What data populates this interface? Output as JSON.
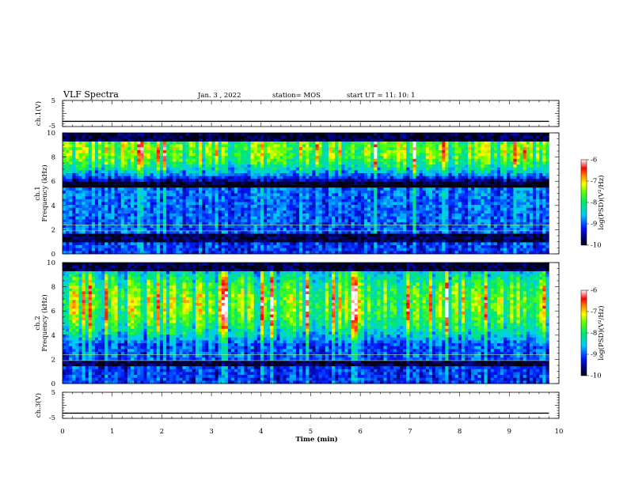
{
  "header": {
    "title": "VLF Spectra",
    "date": "Jan. 3 , 2022",
    "station": "station= MOS",
    "start": "start UT = 11: 10: 1"
  },
  "chart_data": [
    {
      "type": "line",
      "id": "ch1-waveform",
      "ylabel": "ch.1(V)",
      "ylim": [
        -5,
        5
      ],
      "yticks": [
        5,
        -5
      ],
      "xlim": [
        0,
        10
      ],
      "series": [
        {
          "x": [
            0,
            9.8
          ],
          "y": [
            -3,
            -3
          ]
        }
      ]
    },
    {
      "type": "heatmap",
      "id": "ch1-spectrogram",
      "ylabel": "ch.1\nFrequency (kHz)",
      "ylim": [
        0,
        10
      ],
      "yticks": [
        0,
        2,
        4,
        6,
        8,
        10
      ],
      "xlim": [
        0,
        10
      ],
      "data_extent_min": 9.8,
      "colorbar": {
        "label": "log(PSD)(V²/Hz)",
        "range": [
          -10,
          -6
        ],
        "ticks": [
          -6,
          -7,
          -8,
          -9,
          -10
        ]
      }
    },
    {
      "type": "heatmap",
      "id": "ch2-spectrogram",
      "ylabel": "ch.2\nFrequency (kHz)",
      "ylim": [
        0,
        10
      ],
      "yticks": [
        0,
        2,
        4,
        6,
        8,
        10
      ],
      "xlim": [
        0,
        10
      ],
      "data_extent_min": 9.8,
      "colorbar": {
        "label": "log(PSD)(V²/Hz)",
        "range": [
          -10,
          -6
        ],
        "ticks": [
          -6,
          -7,
          -8,
          -9,
          -10
        ]
      }
    },
    {
      "type": "line",
      "id": "ch3-waveform",
      "ylabel": "ch.3(V)",
      "ylim": [
        -5,
        5
      ],
      "yticks": [
        5,
        -5
      ],
      "xlim": [
        0,
        10
      ],
      "series": [
        {
          "x": [
            0,
            9.8
          ],
          "y": [
            -3,
            -3
          ]
        }
      ]
    }
  ],
  "xaxis": {
    "label": "Time (min)",
    "ticks": [
      "0",
      "1",
      "2",
      "3",
      "4",
      "5",
      "6",
      "7",
      "8",
      "9",
      "10"
    ]
  },
  "colorbar_tick_labels": [
    "-6",
    "-7",
    "-8",
    "-9",
    "-10"
  ],
  "colorbar_label": "log(PSD)(V²/Hz)"
}
